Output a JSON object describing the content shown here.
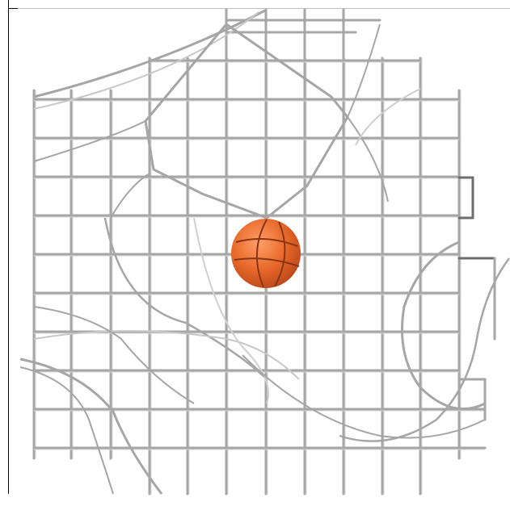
{
  "scene": {
    "background": "#ffffff",
    "cage_color": "#a6a6a6",
    "cage_shadow": "#6e6e6e",
    "ball_color": "#e8692a",
    "ball_seam_color": "#8a3512"
  }
}
